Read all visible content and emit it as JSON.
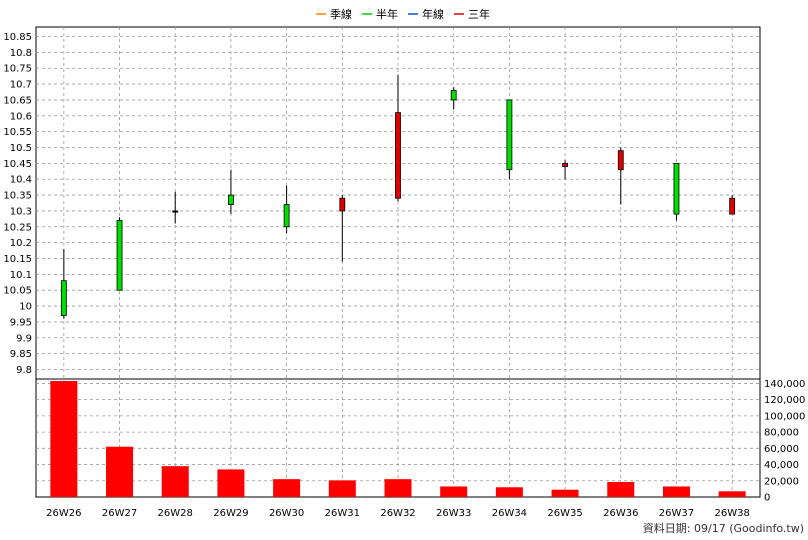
{
  "legend": [
    {
      "label": "季線",
      "color": "#ff8000"
    },
    {
      "label": "半年",
      "color": "#00cc00"
    },
    {
      "label": "年線",
      "color": "#0055cc"
    },
    {
      "label": "三年",
      "color": "#e00000"
    }
  ],
  "footer": "資料日期: 09/17  (Goodinfo.tw)",
  "chart_data": [
    {
      "type": "candlestick",
      "categories": [
        "26W26",
        "26W27",
        "26W28",
        "26W29",
        "26W30",
        "26W31",
        "26W32",
        "26W33",
        "26W34",
        "26W35",
        "26W36",
        "26W37",
        "26W38"
      ],
      "ohlc": [
        {
          "open": 9.97,
          "high": 10.18,
          "low": 9.96,
          "close": 10.08
        },
        {
          "open": 10.05,
          "high": 10.28,
          "low": 10.05,
          "close": 10.27
        },
        {
          "open": 10.3,
          "high": 10.36,
          "low": 10.26,
          "close": 10.3
        },
        {
          "open": 10.32,
          "high": 10.43,
          "low": 10.29,
          "close": 10.35
        },
        {
          "open": 10.25,
          "high": 10.38,
          "low": 10.23,
          "close": 10.32
        },
        {
          "open": 10.34,
          "high": 10.35,
          "low": 10.14,
          "close": 10.3
        },
        {
          "open": 10.61,
          "high": 10.73,
          "low": 10.33,
          "close": 10.34
        },
        {
          "open": 10.65,
          "high": 10.69,
          "low": 10.62,
          "close": 10.68
        },
        {
          "open": 10.43,
          "high": 10.65,
          "low": 10.4,
          "close": 10.65
        },
        {
          "open": 10.45,
          "high": 10.46,
          "low": 10.4,
          "close": 10.44
        },
        {
          "open": 10.49,
          "high": 10.5,
          "low": 10.32,
          "close": 10.43
        },
        {
          "open": 10.29,
          "high": 10.45,
          "low": 10.27,
          "close": 10.45
        },
        {
          "open": 10.34,
          "high": 10.35,
          "low": 10.29,
          "close": 10.29
        }
      ],
      "y_ticks": [
        "9.8",
        "9.85",
        "9.9",
        "9.95",
        "10",
        "10.05",
        "10.1",
        "10.15",
        "10.2",
        "10.25",
        "10.3",
        "10.35",
        "10.4",
        "10.45",
        "10.5",
        "10.55",
        "10.6",
        "10.65",
        "10.7",
        "10.75",
        "10.8",
        "10.85"
      ],
      "ylim": [
        9.77,
        10.88
      ],
      "grid": true
    },
    {
      "type": "bar",
      "categories": [
        "26W26",
        "26W27",
        "26W28",
        "26W29",
        "26W30",
        "26W31",
        "26W32",
        "26W33",
        "26W34",
        "26W35",
        "26W36",
        "26W37",
        "26W38"
      ],
      "values": [
        143000,
        62000,
        38000,
        34000,
        22000,
        20500,
        22000,
        13000,
        12000,
        9000,
        18500,
        13000,
        7000
      ],
      "y_ticks": [
        "0",
        "20,000",
        "40,000",
        "60,000",
        "80,000",
        "100,000",
        "120,000",
        "140,000"
      ],
      "ylim": [
        0,
        143000
      ],
      "grid": true
    }
  ]
}
